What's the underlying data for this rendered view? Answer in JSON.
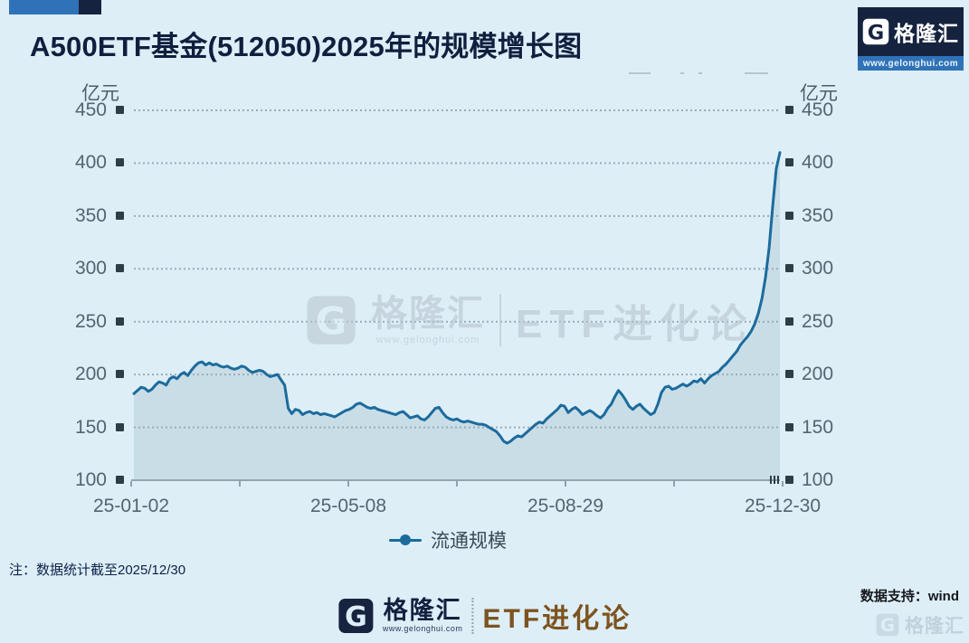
{
  "page": {
    "title": "A500ETF基金(512050)2025年的规模增长图",
    "note": "注：数据统计截至2025/12/30",
    "data_support": "数据支持：wind"
  },
  "brand": {
    "logo_letter": "G",
    "name": "格隆汇",
    "url": "www.gelonghui.com",
    "series_name": "ETF进化论"
  },
  "chart_data": {
    "type": "area",
    "title": "A500ETF基金(512050)2025年的规模增长图",
    "unit": "亿元",
    "ylabel": "亿元",
    "ylim": [
      100,
      450
    ],
    "y_ticks": [
      450,
      400,
      350,
      300,
      250,
      200,
      150,
      100
    ],
    "x_tick_labels": [
      "25-01-02",
      "25-05-08",
      "25-08-29",
      "25-12-30"
    ],
    "legend": [
      "流通规模"
    ],
    "legend_position": "bottom",
    "grid": "dotted-horizontal",
    "colors": {
      "line": "#1c6b9c",
      "fill": "#c5d9e4",
      "background": "#ddeef7"
    },
    "series": [
      {
        "name": "流通规模",
        "values": [
          182,
          185,
          188,
          187,
          184,
          186,
          190,
          193,
          192,
          190,
          196,
          198,
          196,
          200,
          202,
          199,
          204,
          208,
          211,
          212,
          209,
          211,
          209,
          210,
          208,
          207,
          208,
          206,
          205,
          206,
          208,
          207,
          204,
          202,
          203,
          204,
          203,
          200,
          198,
          199,
          200,
          195,
          190,
          168,
          163,
          167,
          166,
          162,
          164,
          165,
          163,
          164,
          162,
          163,
          162,
          161,
          160,
          162,
          164,
          166,
          167,
          169,
          172,
          173,
          171,
          169,
          168,
          169,
          167,
          166,
          165,
          164,
          163,
          162,
          164,
          165,
          162,
          159,
          160,
          161,
          158,
          157,
          160,
          164,
          168,
          169,
          164,
          160,
          158,
          157,
          158,
          156,
          155,
          156,
          155,
          154,
          153,
          153,
          152,
          150,
          148,
          146,
          142,
          137,
          135,
          137,
          140,
          142,
          141,
          144,
          147,
          150,
          153,
          155,
          154,
          158,
          161,
          164,
          167,
          171,
          170,
          164,
          167,
          169,
          166,
          162,
          164,
          166,
          164,
          161,
          159,
          162,
          168,
          172,
          179,
          185,
          181,
          176,
          170,
          167,
          170,
          172,
          168,
          165,
          162,
          164,
          172,
          183,
          188,
          189,
          186,
          187,
          189,
          191,
          189,
          191,
          194,
          193,
          196,
          192,
          196,
          199,
          201,
          203,
          207,
          210,
          214,
          218,
          222,
          228,
          232,
          236,
          241,
          248,
          258,
          272,
          292,
          320,
          360,
          395,
          410
        ]
      }
    ]
  }
}
